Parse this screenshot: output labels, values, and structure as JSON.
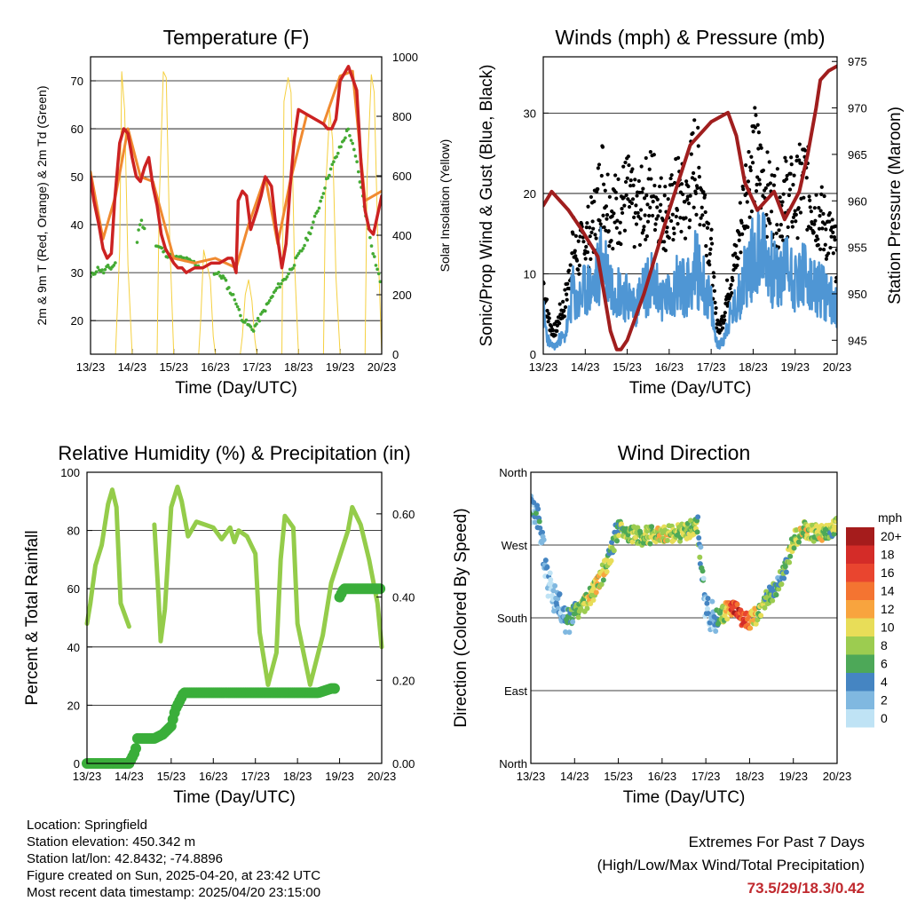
{
  "chart_data": [
    {
      "type": "line",
      "title": "Temperature (F)",
      "xlabel": "Time (Day/UTC)",
      "ylabel": "2m & 9m T (Red, Orange) & 2m Td (Green)",
      "y2label": "Solar Insolation (Yellow)",
      "ylim": [
        13,
        75
      ],
      "y2lim": [
        0,
        1000
      ],
      "x_ticks": [
        "13/23",
        "14/23",
        "15/23",
        "16/23",
        "17/23",
        "18/23",
        "19/23",
        "20/23"
      ],
      "y_ticks": [
        20,
        30,
        40,
        50,
        60,
        70
      ],
      "y2_ticks": [
        0,
        200,
        400,
        600,
        800,
        1000
      ],
      "grid": true,
      "colors": {
        "t2m": "#cc2222",
        "t9m": "#f08a30",
        "td": "#44aa33",
        "solar": "#f5d040"
      },
      "series": [
        {
          "name": "2m T",
          "x": [
            0,
            0.08,
            0.2,
            0.3,
            0.4,
            0.5,
            0.58,
            0.7,
            0.8,
            0.9,
            1.0,
            1.1,
            1.2,
            1.3,
            1.4,
            1.5,
            1.6,
            1.7,
            1.8,
            2.0,
            2.1,
            2.2,
            2.3,
            2.5,
            2.7,
            2.9,
            3.1,
            3.3,
            3.4,
            3.5,
            3.55,
            3.65,
            3.75,
            3.85,
            4.0,
            4.1,
            4.2,
            4.35,
            4.45,
            4.55,
            4.6,
            4.7,
            4.8,
            4.9,
            5.0,
            5.2,
            5.4,
            5.6,
            5.7,
            5.8,
            5.9,
            6.0,
            6.2,
            6.4,
            6.5,
            6.6,
            6.7,
            6.8,
            6.9,
            7.0
          ],
          "values": [
            50,
            45,
            40,
            35,
            33,
            34,
            45,
            57,
            60,
            59,
            54,
            50,
            49,
            52,
            54,
            48,
            44,
            38,
            35,
            32,
            31,
            31,
            30,
            31,
            31,
            32,
            32,
            33,
            33,
            30,
            45,
            47,
            46,
            39,
            43,
            46,
            50,
            48,
            40,
            34,
            31,
            36,
            48,
            58,
            64,
            63,
            62,
            61,
            60,
            60,
            62,
            70,
            73,
            68,
            53,
            43,
            39,
            38,
            42,
            46
          ]
        },
        {
          "name": "9m T",
          "x": [
            0,
            0.3,
            0.6,
            0.9,
            1.2,
            1.5,
            2.0,
            2.5,
            3.0,
            3.5,
            3.8,
            4.2,
            4.5,
            4.8,
            5.2,
            5.6,
            6.0,
            6.3,
            6.6,
            7.0
          ],
          "values": [
            51,
            37,
            46,
            60,
            50,
            49,
            33,
            32,
            33,
            31,
            40,
            50,
            36,
            49,
            63,
            61,
            71,
            72,
            45,
            47
          ]
        },
        {
          "name": "2m Td",
          "x": [
            0,
            0.08,
            0.2,
            0.3,
            0.4,
            0.5,
            0.6,
            1.0,
            1.2,
            1.5,
            1.7,
            1.8,
            2.0,
            2.2,
            2.5,
            2.8,
            3.0,
            3.2,
            3.3,
            3.5,
            3.6,
            3.7,
            3.9,
            4.1,
            4.3,
            4.5,
            4.7,
            4.9,
            5.1,
            5.3,
            5.5,
            5.7,
            5.9,
            6.0,
            6.2,
            6.4,
            6.6,
            6.8,
            7.0
          ],
          "values": [
            29,
            30,
            31,
            30,
            31,
            31,
            32,
            30,
            41,
            36,
            35,
            34,
            33,
            33,
            32,
            30,
            30,
            29,
            27,
            24,
            21,
            20,
            18,
            21,
            24,
            27,
            29,
            32,
            35,
            39,
            44,
            50,
            54,
            56,
            60,
            53,
            43,
            34,
            27
          ]
        },
        {
          "name": "Solar",
          "x": [
            0,
            0.6,
            0.7,
            0.75,
            0.82,
            0.9,
            1.0,
            1.6,
            1.65,
            1.75,
            1.82,
            1.9,
            2.0,
            2.6,
            2.65,
            2.72,
            2.8,
            2.88,
            2.95,
            3.0,
            3.6,
            3.65,
            3.72,
            3.8,
            3.88,
            3.95,
            4.0,
            4.6,
            4.65,
            4.75,
            4.82,
            4.9,
            5.0,
            5.6,
            5.65,
            5.75,
            5.82,
            5.9,
            6.0,
            6.6,
            6.65,
            6.75,
            6.82,
            6.9,
            7.0
          ],
          "values": [
            0,
            0,
            350,
            950,
            820,
            300,
            0,
            0,
            500,
            950,
            930,
            400,
            0,
            0,
            120,
            350,
            300,
            250,
            60,
            0,
            0,
            60,
            200,
            250,
            180,
            50,
            0,
            0,
            850,
            930,
            880,
            320,
            0,
            0,
            550,
            820,
            720,
            260,
            0,
            0,
            600,
            940,
            880,
            420,
            0
          ]
        }
      ]
    },
    {
      "type": "scatter",
      "title": "Winds (mph) & Pressure (mb)",
      "xlabel": "Time (Day/UTC)",
      "ylabel": "Sonic/Prop Wind & Gust (Blue, Black)",
      "y2label": "Station Pressure (Maroon)",
      "ylim": [
        0,
        37
      ],
      "y2lim": [
        943.5,
        975.5
      ],
      "x_ticks": [
        "13/23",
        "14/23",
        "15/23",
        "16/23",
        "17/23",
        "18/23",
        "19/23",
        "20/23"
      ],
      "y_ticks": [
        0,
        10,
        20,
        30
      ],
      "y2_ticks": [
        945,
        950,
        955,
        960,
        965,
        970,
        975
      ],
      "grid": true,
      "colors": {
        "wind": "#4f96d4",
        "gust": "#000000",
        "pressure": "#a01e1e"
      },
      "series": [
        {
          "name": "Wind",
          "x": [
            0,
            0.1,
            0.2,
            0.3,
            0.4,
            0.5,
            0.6,
            0.7,
            0.8,
            0.9,
            1.0,
            1.2,
            1.4,
            1.6,
            1.8,
            2.0,
            2.2,
            2.4,
            2.6,
            2.8,
            3.0,
            3.2,
            3.4,
            3.6,
            3.8,
            4.0,
            4.1,
            4.2,
            4.3,
            4.4,
            4.6,
            4.8,
            5.0,
            5.2,
            5.4,
            5.6,
            5.8,
            6.0,
            6.2,
            6.4,
            6.6,
            6.8,
            7.0
          ],
          "values": [
            5,
            2,
            1,
            1,
            2,
            2,
            4,
            8,
            6,
            7,
            8,
            8,
            12,
            9,
            8,
            7,
            6,
            8,
            9,
            7,
            7,
            9,
            8,
            11,
            9,
            6,
            2,
            1,
            2,
            4,
            6,
            10,
            12,
            14,
            11,
            9,
            11,
            9,
            10,
            8,
            8,
            7,
            6
          ]
        },
        {
          "name": "Gust",
          "x": [
            0,
            0.1,
            0.2,
            0.3,
            0.4,
            0.5,
            0.6,
            0.7,
            0.8,
            0.9,
            1.0,
            1.2,
            1.4,
            1.6,
            1.8,
            2.0,
            2.2,
            2.4,
            2.6,
            2.8,
            3.0,
            3.2,
            3.4,
            3.6,
            3.8,
            4.0,
            4.1,
            4.2,
            4.3,
            4.4,
            4.6,
            4.8,
            5.0,
            5.2,
            5.4,
            5.6,
            5.8,
            6.0,
            6.2,
            6.4,
            6.6,
            6.8,
            7.0
          ],
          "values": [
            9,
            5,
            3,
            3,
            5,
            6,
            9,
            14,
            12,
            13,
            14,
            16,
            22,
            18,
            18,
            20,
            17,
            19,
            21,
            18,
            17,
            20,
            18,
            24,
            20,
            13,
            5,
            3,
            5,
            8,
            12,
            20,
            25,
            22,
            19,
            18,
            20,
            19,
            22,
            19,
            17,
            15,
            12
          ]
        },
        {
          "name": "Pressure",
          "x": [
            0,
            0.2,
            0.6,
            0.9,
            1.3,
            1.6,
            1.75,
            1.85,
            2.0,
            2.4,
            3.0,
            3.5,
            4.0,
            4.4,
            4.6,
            4.8,
            5.1,
            5.5,
            5.75,
            6.1,
            6.3,
            6.5,
            6.6,
            6.8,
            7.0
          ],
          "values": [
            959.5,
            961,
            959,
            957,
            954,
            946,
            944,
            944,
            945,
            950,
            959,
            966,
            968.5,
            969.5,
            967,
            962,
            959,
            961,
            958,
            961,
            965,
            970,
            973,
            974,
            974.5
          ]
        }
      ]
    },
    {
      "type": "line",
      "title": "Relative Humidity (%) & Precipitation (in)",
      "xlabel": "Time (Day/UTC)",
      "ylabel": "Percent & Total Rainfall",
      "ylim": [
        0,
        100
      ],
      "y2lim": [
        0,
        0.7
      ],
      "x_ticks": [
        "13/23",
        "14/23",
        "15/23",
        "16/23",
        "17/23",
        "18/23",
        "19/23",
        "20/23"
      ],
      "y_ticks": [
        0,
        20,
        40,
        60,
        80,
        100
      ],
      "y2_ticks": [
        "0.00",
        "0.20",
        "0.40",
        "0.60"
      ],
      "grid": true,
      "colors": {
        "rh": "#94cc4a",
        "precip": "#3aae3a"
      },
      "series": [
        {
          "name": "RH",
          "x": [
            0,
            0.08,
            0.2,
            0.35,
            0.5,
            0.6,
            0.7,
            0.8,
            1.0,
            1.6,
            1.7,
            1.75,
            1.85,
            2.0,
            2.15,
            2.25,
            2.4,
            2.6,
            2.8,
            3.0,
            3.2,
            3.4,
            3.5,
            3.6,
            3.8,
            4.0,
            4.1,
            4.3,
            4.5,
            4.6,
            4.7,
            4.9,
            5.0,
            5.3,
            5.6,
            5.8,
            6.0,
            6.2,
            6.3,
            6.5,
            6.7,
            6.9,
            7.0
          ],
          "values": [
            48,
            55,
            68,
            75,
            89,
            94,
            88,
            55,
            47,
            82,
            57,
            42,
            53,
            88,
            95,
            90,
            78,
            83,
            82,
            81,
            77,
            81,
            76,
            80,
            78,
            72,
            45,
            27,
            38,
            70,
            85,
            81,
            48,
            27,
            44,
            62,
            71,
            80,
            88,
            82,
            70,
            55,
            40
          ]
        },
        {
          "name": "Precipitation",
          "x": [
            0,
            0.5,
            1.0,
            1.15,
            1.2,
            1.6,
            1.8,
            2.0,
            2.1,
            2.2,
            2.3,
            2.5,
            3.0,
            3.5,
            4.0,
            4.5,
            5.0,
            5.5,
            5.8,
            5.9,
            6.0,
            6.1,
            6.5,
            7.0
          ],
          "values": [
            0,
            0,
            0,
            0.03,
            0.06,
            0.06,
            0.07,
            0.09,
            0.13,
            0.15,
            0.17,
            0.17,
            0.17,
            0.17,
            0.17,
            0.17,
            0.17,
            0.17,
            0.18,
            0.18,
            0.4,
            0.42,
            0.42,
            0.42
          ]
        }
      ]
    },
    {
      "type": "scatter",
      "title": "Wind Direction",
      "xlabel": "Time (Day/UTC)",
      "ylabel": "Direction (Colored By Speed)",
      "ylim": [
        0,
        360
      ],
      "x_ticks": [
        "13/23",
        "14/23",
        "15/23",
        "16/23",
        "17/23",
        "18/23",
        "19/23",
        "20/23"
      ],
      "y_ticks": [
        "North",
        "East",
        "South",
        "West",
        "North"
      ],
      "grid": true,
      "series": [
        {
          "name": "Direction",
          "x": [
            0,
            0.2,
            0.4,
            0.6,
            0.8,
            1.0,
            1.2,
            1.4,
            1.6,
            1.8,
            2.0,
            2.2,
            2.5,
            3.0,
            3.5,
            3.8,
            4.0,
            4.2,
            4.4,
            4.6,
            4.8,
            5.0,
            5.2,
            5.4,
            5.6,
            5.8,
            6.0,
            6.2,
            6.5,
            6.8,
            7.0
          ],
          "values": [
            315,
            295,
            220,
            200,
            180,
            185,
            195,
            210,
            230,
            255,
            290,
            285,
            280,
            285,
            285,
            295,
            190,
            180,
            185,
            195,
            180,
            175,
            185,
            205,
            215,
            240,
            275,
            290,
            285,
            285,
            295
          ],
          "speed": [
            3,
            3,
            2,
            2,
            3,
            5,
            8,
            9,
            10,
            7,
            6,
            8,
            8,
            9,
            8,
            7,
            2,
            3,
            7,
            16,
            17,
            14,
            9,
            7,
            5,
            6,
            8,
            9,
            9,
            8,
            7
          ]
        }
      ],
      "legend": {
        "title": "mph",
        "labels": [
          "20+",
          "18",
          "16",
          "14",
          "12",
          "10",
          "8",
          "6",
          "4",
          "2",
          "0"
        ],
        "colors": [
          "#a51c1c",
          "#d42c28",
          "#e9452f",
          "#f47431",
          "#f8a43e",
          "#e8dd58",
          "#9ccc50",
          "#4da858",
          "#4585c2",
          "#80b8e0",
          "#bfe3f5"
        ]
      }
    }
  ],
  "info": {
    "location": "Location: Springfield",
    "elevation": "Station elevation: 450.342 m",
    "latlon": "Station lat/lon: 42.8432; -74.8896",
    "created": "Figure created on Sun, 2025-04-20, at 23:42 UTC",
    "timestamp": "Most recent data timestamp: 2025/04/20 23:15:00"
  },
  "extremes": {
    "line1": "Extremes For Past 7 Days",
    "line2": "(High/Low/Max Wind/Total Precipitation)",
    "values": "73.5/29/18.3/0.42",
    "values_color": "#c0292e"
  }
}
